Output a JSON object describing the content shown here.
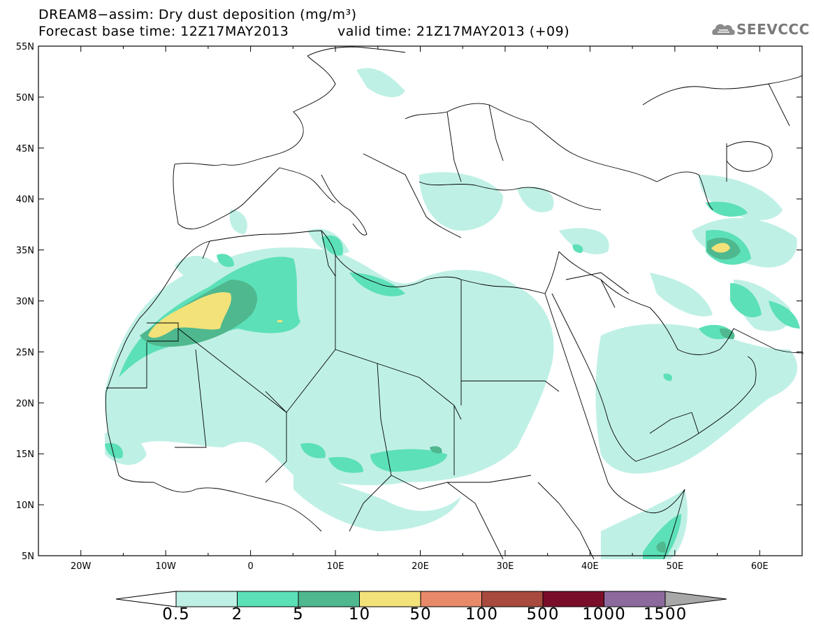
{
  "title": {
    "line1": "DREAM8−assim: Dry dust deposition (mg/m³)",
    "line2_base": "Forecast base time: 12Z17MAY2013",
    "line2_valid": "valid time: 21Z17MAY2013 (+09)"
  },
  "logo": {
    "text": "SEEVCCC",
    "icon": "cloud-icon"
  },
  "map": {
    "lon_range": [
      -25,
      65
    ],
    "lat_range": [
      5,
      55
    ],
    "lat_ticks": [
      "55N",
      "50N",
      "45N",
      "40N",
      "35N",
      "30N",
      "25N",
      "20N",
      "15N",
      "10N",
      "5N"
    ],
    "lon_ticks": [
      "20W",
      "10W",
      "0",
      "10E",
      "20E",
      "30E",
      "40E",
      "50E",
      "60E"
    ]
  },
  "colorbar": {
    "labels": [
      "0.5",
      "2",
      "5",
      "10",
      "50",
      "100",
      "500",
      "1000",
      "1500"
    ],
    "colors": [
      "#bff0e6",
      "#5ce0b8",
      "#4fb88f",
      "#f3e27a",
      "#e8896a",
      "#a84a3e",
      "#7a0e2a",
      "#8c6a9e",
      "#a8a8a8"
    ]
  }
}
